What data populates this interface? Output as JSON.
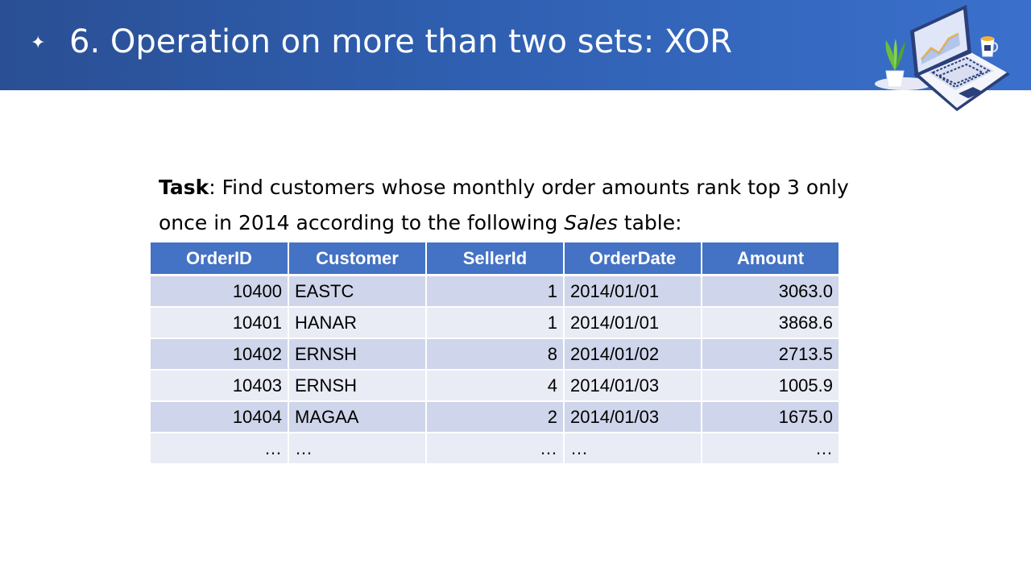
{
  "header": {
    "bullet": "✦",
    "title": "6. Operation on more than two sets: XOR",
    "illustration_icon": "laptop-chart-illustration"
  },
  "task": {
    "label": "Task",
    "separator": ":  ",
    "line1_text": "Find customers whose monthly order amounts rank top 3 only",
    "line2_before": "once in 2014 according to the following ",
    "line2_italic": "Sales",
    "line2_after": " table:"
  },
  "sales_table": {
    "headers": [
      "OrderID",
      "Customer",
      "SellerId",
      "OrderDate",
      "Amount"
    ],
    "rows": [
      [
        "10400",
        "EASTC",
        "1",
        "2014/01/01",
        "3063.0"
      ],
      [
        "10401",
        "HANAR",
        "1",
        "2014/01/01",
        "3868.6"
      ],
      [
        "10402",
        "ERNSH",
        "8",
        "2014/01/02",
        "2713.5"
      ],
      [
        "10403",
        "ERNSH",
        "4",
        "2014/01/03",
        "1005.9"
      ],
      [
        "10404",
        "MAGAA",
        "2",
        "2014/01/03",
        "1675.0"
      ],
      [
        "…",
        "…",
        "…",
        "…",
        "…"
      ]
    ]
  },
  "colors": {
    "header_band": "#2f5fb0",
    "table_header": "#4472c4",
    "row_dark": "#cfd5ea",
    "row_light": "#e9ebf5"
  }
}
